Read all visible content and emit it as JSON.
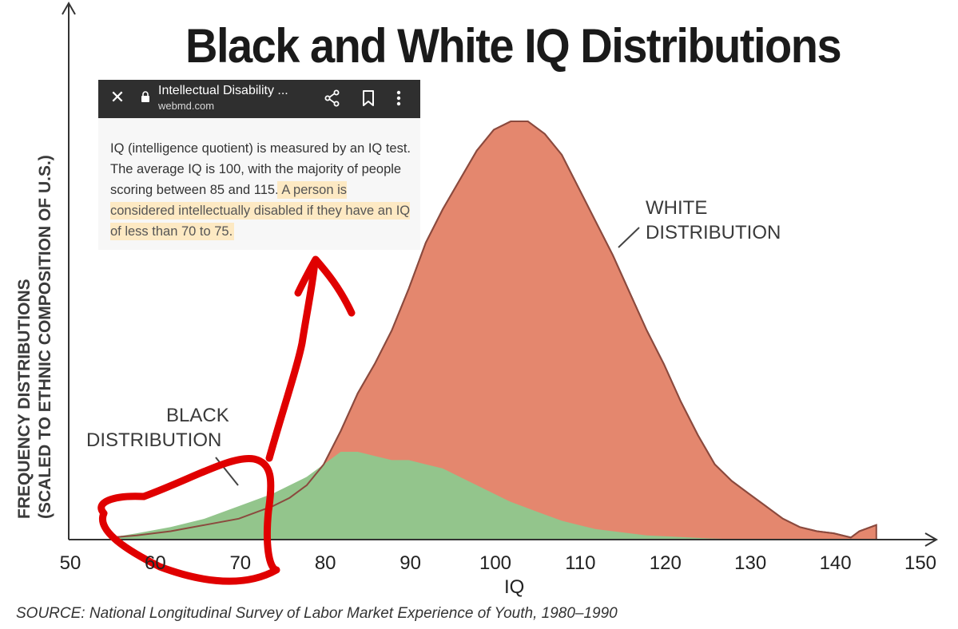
{
  "title": "Black and White IQ Distributions",
  "ylabel_line1": "FREQUENCY DISTRIBUTIONS",
  "ylabel_line2": "(SCALED TO ETHNIC COMPOSITION OF U.S.)",
  "xlabel": "IQ",
  "white_label_line1": "WHITE",
  "white_label_line2": "DISTRIBUTION",
  "black_label_line1": "BLACK",
  "black_label_line2": "DISTRIBUTION",
  "source_prefix": "SOURCE:",
  "source_text": "National Longitudinal Survey of Labor Market Experience of Youth, 1980–1990",
  "popup": {
    "close_icon": "close-icon",
    "title": "Intellectual Disability ...",
    "url": "webmd.com",
    "text_plain": "IQ (intelligence quotient) is measured by an IQ test. The average IQ is 100, with the majority of people scoring between 85 and 115.",
    "text_highlighted": " A person is considered intellectually disabled if they have an IQ of less than 70 to 75."
  },
  "colors": {
    "white_fill": "#e4876e",
    "white_line": "#8b4a3e",
    "black_fill": "#93c58c",
    "annotation_red": "#e00000",
    "highlight": "#fde9c3"
  },
  "chart_data": {
    "type": "area",
    "title": "Black and White IQ Distributions",
    "xlabel": "IQ",
    "ylabel": "FREQUENCY DISTRIBUTIONS (SCALED TO ETHNIC COMPOSITION OF U.S.)",
    "xlim": [
      50,
      150
    ],
    "x_ticks": [
      50,
      60,
      70,
      80,
      90,
      100,
      110,
      120,
      130,
      140,
      150
    ],
    "ylim": [
      0,
      100
    ],
    "grid": false,
    "series": [
      {
        "name": "WHITE DISTRIBUTION",
        "x": [
          55,
          58,
          62,
          66,
          70,
          74,
          76,
          78,
          80,
          82,
          84,
          86,
          88,
          90,
          92,
          94,
          96,
          98,
          100,
          102,
          104,
          106,
          108,
          110,
          112,
          114,
          116,
          118,
          120,
          122,
          124,
          126,
          128,
          130,
          132,
          134,
          136,
          138,
          140,
          142,
          143,
          145
        ],
        "y": [
          0.5,
          1,
          2,
          3.5,
          5,
          8,
          10,
          13,
          18,
          26,
          35,
          42,
          50,
          60,
          71,
          79,
          86,
          93,
          98,
          100,
          100,
          97,
          92,
          84,
          76,
          68,
          59,
          50,
          42,
          33,
          25,
          18,
          14,
          11,
          8,
          5,
          3,
          2,
          1.5,
          0.5,
          2,
          3.5
        ]
      },
      {
        "name": "BLACK DISTRIBUTION",
        "x": [
          55,
          58,
          62,
          66,
          70,
          74,
          78,
          80,
          82,
          84,
          86,
          88,
          90,
          92,
          94,
          96,
          98,
          100,
          102,
          104,
          106,
          108,
          110,
          112,
          114,
          116,
          118,
          120,
          125,
          130
        ],
        "y": [
          0.5,
          1.5,
          3,
          5,
          8,
          11,
          15,
          18,
          21,
          21,
          20,
          19,
          19,
          18,
          17,
          15,
          13,
          11,
          9,
          7.5,
          6,
          4.5,
          3.5,
          2.5,
          2,
          1.5,
          1,
          0.8,
          0.3,
          0
        ]
      }
    ]
  }
}
